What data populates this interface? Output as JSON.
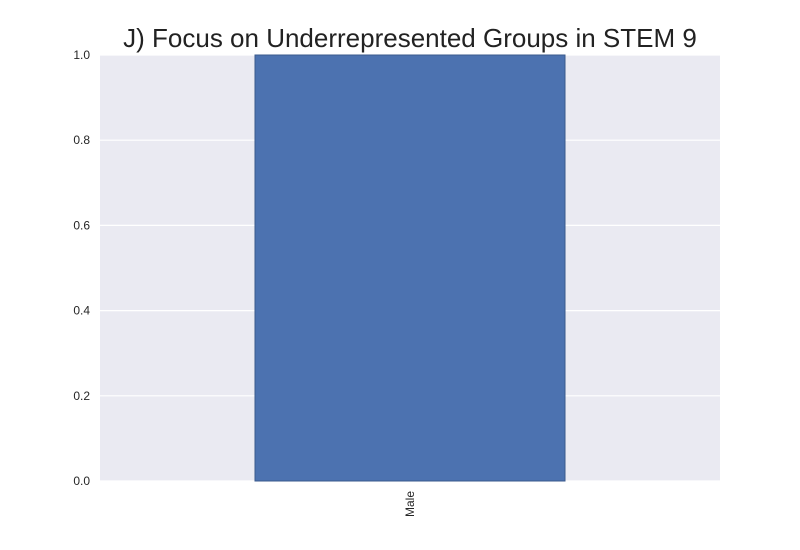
{
  "chart_data": {
    "type": "bar",
    "title": "J) Focus on Underrepresented Groups in STEM 9",
    "categories": [
      "Male"
    ],
    "values": [
      1.0
    ],
    "xlabel": "",
    "ylabel": "",
    "ylim": [
      0,
      1.0
    ],
    "yticks": [
      "0.0",
      "0.2",
      "0.4",
      "0.6",
      "0.8",
      "1.0"
    ],
    "grid": true,
    "colors": {
      "bar": "#4c72b0",
      "bar_edge": "#3a5a8c",
      "plot_background": "#eaeaf2",
      "grid": "#ffffff"
    }
  }
}
